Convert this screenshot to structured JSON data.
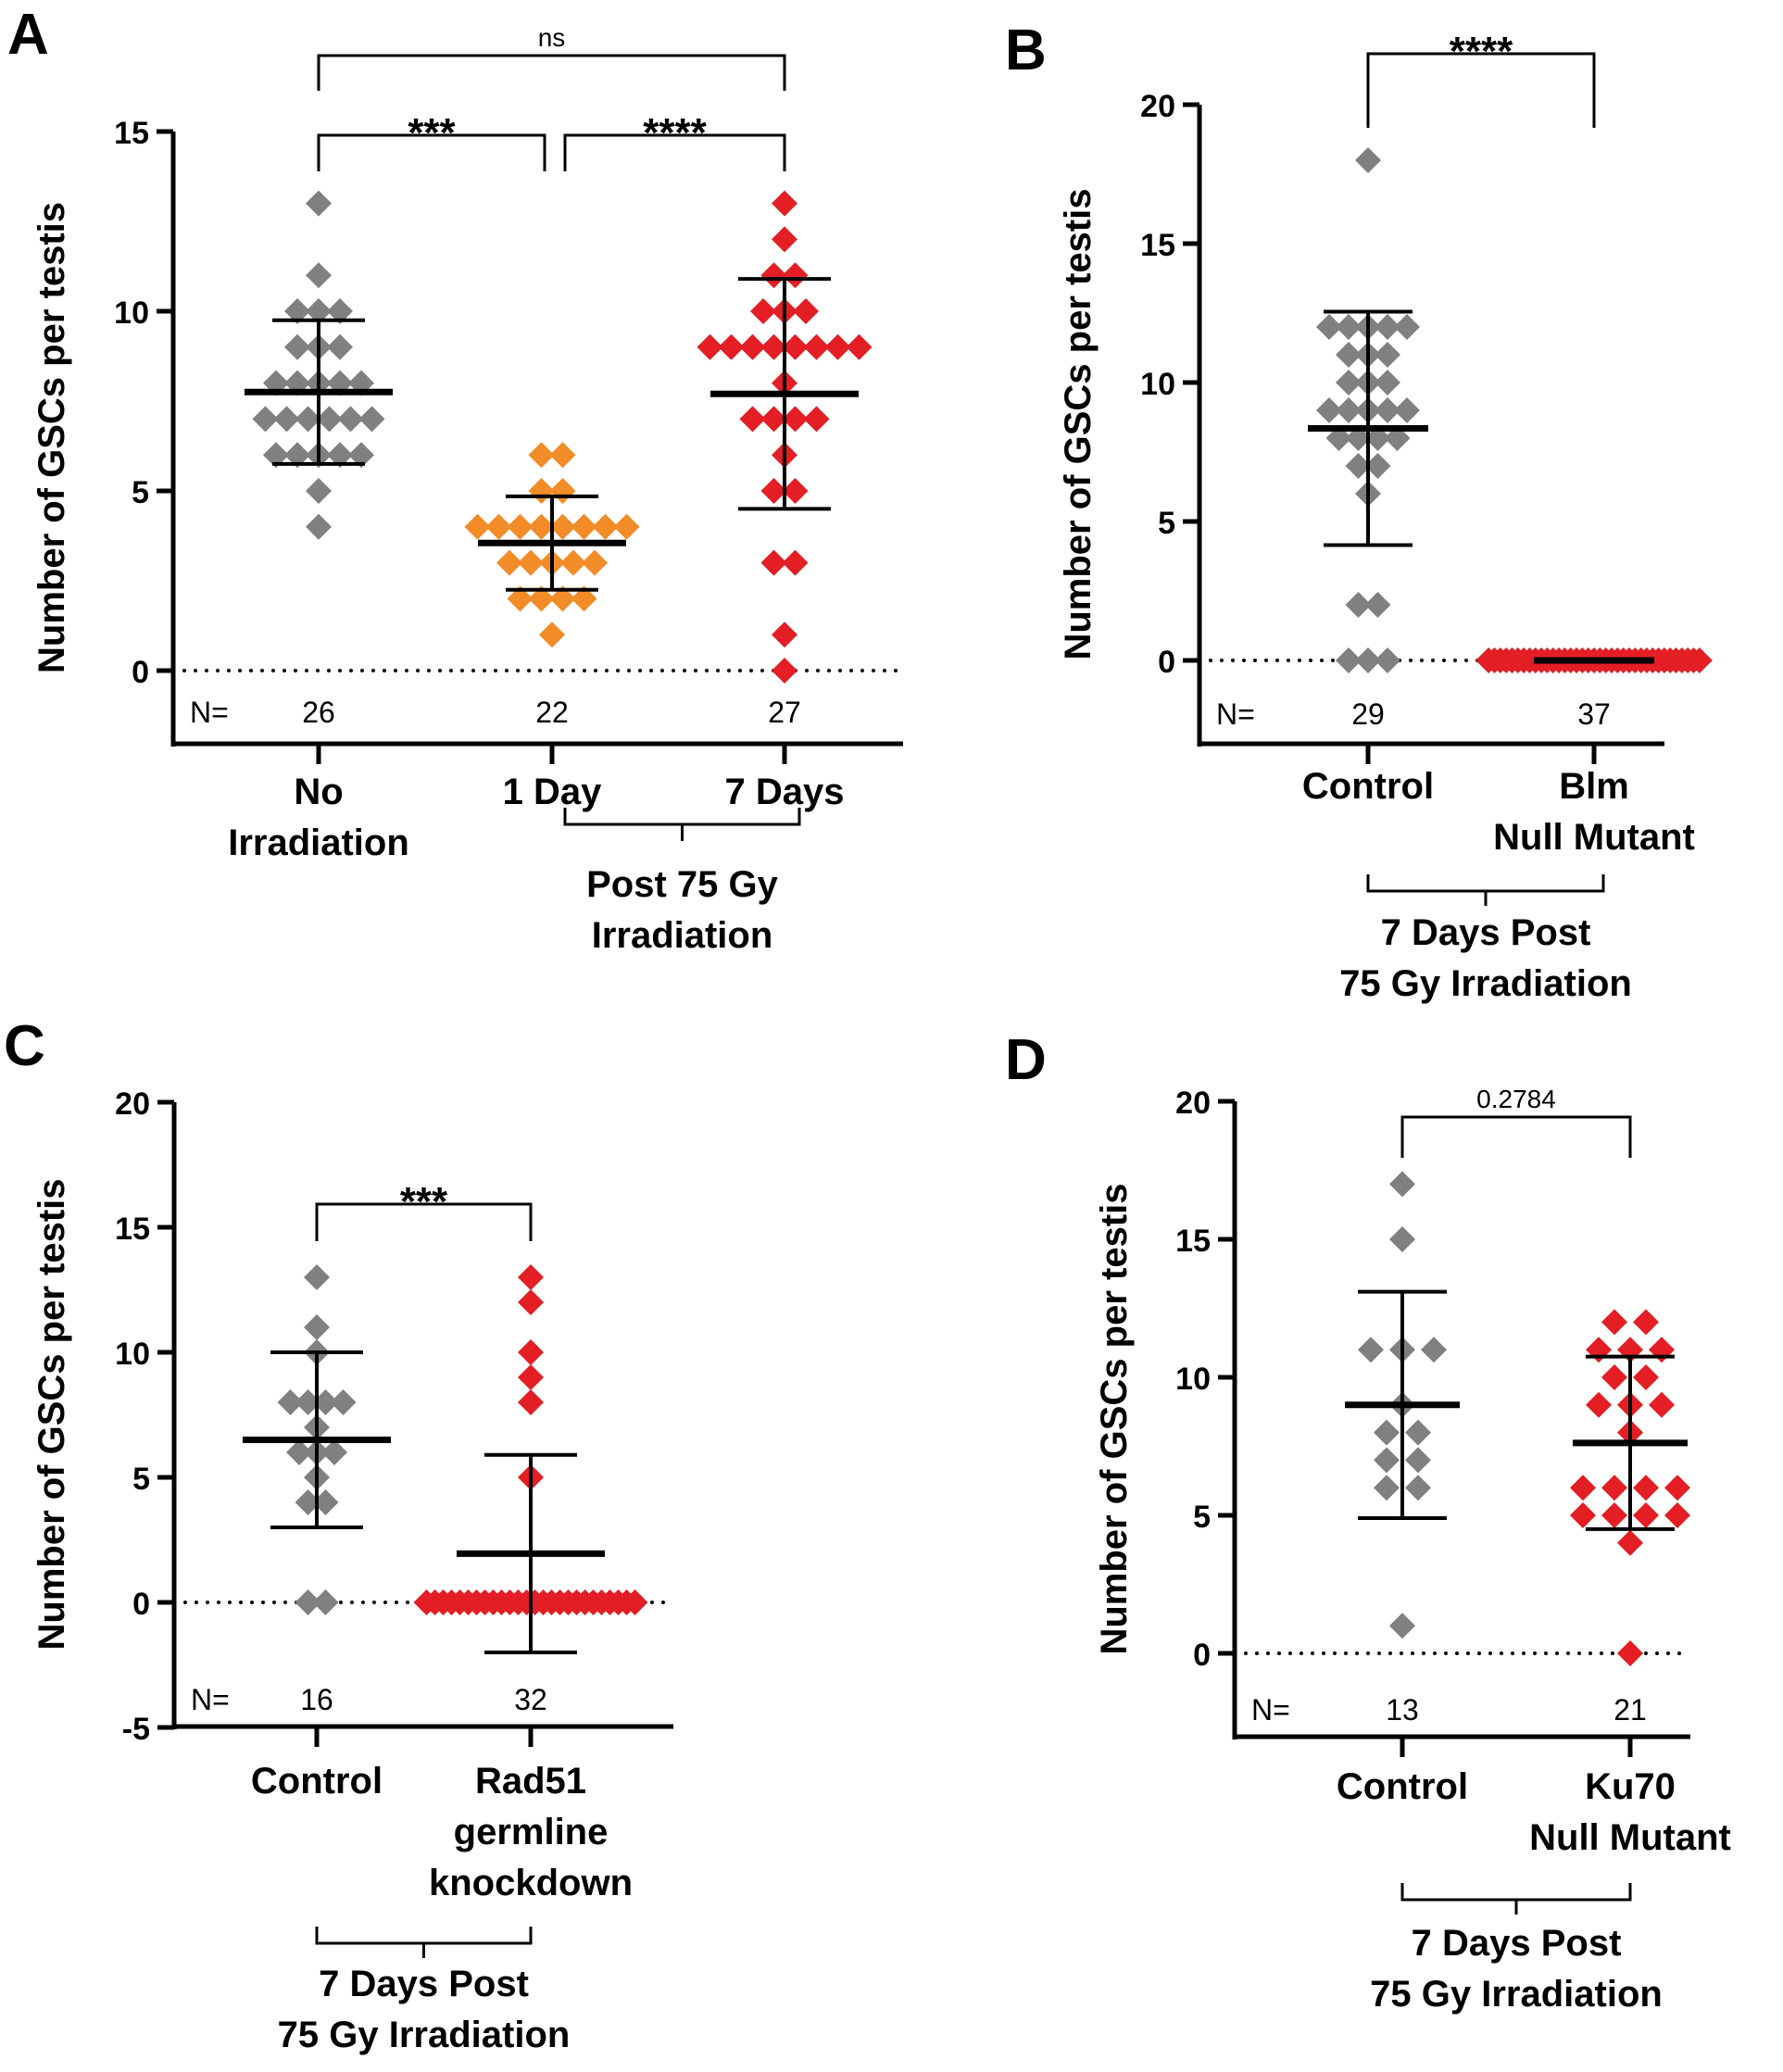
{
  "chart_data": [
    {
      "panel_label": "A",
      "type": "scatter",
      "subtype": "dot-plot with mean and SD",
      "ylabel": "Number of GSCs per testis",
      "ylim": [
        -2,
        15
      ],
      "yticks": [
        0,
        5,
        10,
        15
      ],
      "reference_line": 0,
      "n_label": "N=",
      "categories": [
        {
          "label_lines": [
            "No",
            "Irradiation"
          ],
          "n": "26",
          "color": "#808080",
          "values": [
            13,
            11,
            10,
            10,
            10,
            9,
            9,
            9,
            8,
            8,
            8,
            8,
            8,
            7,
            7,
            7,
            7,
            7,
            7,
            6,
            6,
            6,
            6,
            6,
            5,
            4
          ],
          "mean": 7.75,
          "sd_low": 5.75,
          "sd_high": 9.75
        },
        {
          "label_lines": [
            "1 Day"
          ],
          "n": "22",
          "color": "#f28c28",
          "values": [
            6,
            6,
            5,
            5,
            4,
            4,
            4,
            4,
            4,
            4,
            4,
            4,
            3,
            3,
            3,
            3,
            3,
            2,
            2,
            2,
            2,
            1
          ],
          "mean": 3.55,
          "sd_low": 2.25,
          "sd_high": 4.85
        },
        {
          "label_lines": [
            "7 Days"
          ],
          "n": "27",
          "color": "#e31e24",
          "values": [
            13,
            12,
            11,
            11,
            10,
            10,
            10,
            9,
            9,
            9,
            9,
            9,
            9,
            9,
            9,
            8,
            7,
            7,
            7,
            7,
            6,
            5,
            5,
            3,
            3,
            1,
            0
          ],
          "mean": 7.7,
          "sd_low": 4.5,
          "sd_high": 10.9
        }
      ],
      "group_bracket": {
        "from": 1,
        "to": 2,
        "label_lines": [
          "Post 75 Gy",
          "Irradiation"
        ]
      },
      "comparisons": [
        {
          "from": 0,
          "to": 1,
          "label": "***"
        },
        {
          "from": 1,
          "to": 2,
          "label": "****"
        },
        {
          "from": 0,
          "to": 2,
          "label": "ns"
        }
      ]
    },
    {
      "panel_label": "B",
      "type": "scatter",
      "subtype": "dot-plot with mean and SD",
      "ylabel": "Number of GSCs per testis",
      "ylim": [
        -3,
        20
      ],
      "yticks": [
        0,
        5,
        10,
        15,
        20
      ],
      "reference_line": 0,
      "n_label": "N=",
      "categories": [
        {
          "label_lines": [
            "Control"
          ],
          "n": "29",
          "color": "#808080",
          "values": [
            18,
            12,
            12,
            12,
            12,
            12,
            11,
            11,
            11,
            10,
            10,
            10,
            9,
            9,
            9,
            9,
            9,
            8,
            8,
            8,
            8,
            7,
            7,
            6,
            2,
            2,
            0,
            0,
            0
          ],
          "mean": 8.35,
          "sd_low": 4.15,
          "sd_high": 12.55
        },
        {
          "label_lines": [
            "Blm",
            "Null Mutant"
          ],
          "n": "37",
          "color": "#e31e24",
          "values": [
            0,
            0,
            0,
            0,
            0,
            0,
            0,
            0,
            0,
            0,
            0,
            0,
            0,
            0,
            0,
            0,
            0,
            0,
            0,
            0,
            0,
            0,
            0,
            0,
            0,
            0,
            0,
            0,
            0,
            0,
            0,
            0,
            0,
            0,
            0,
            0,
            0
          ],
          "mean": 0,
          "sd_low": 0,
          "sd_high": 0
        }
      ],
      "group_bracket": {
        "from": 0,
        "to": 1,
        "label_lines": [
          "7 Days Post",
          "75 Gy Irradiation"
        ]
      },
      "comparisons": [
        {
          "from": 0,
          "to": 1,
          "label": "****"
        }
      ]
    },
    {
      "panel_label": "C",
      "type": "scatter",
      "subtype": "dot-plot with mean and SD",
      "ylabel": "Number of GSCs per testis",
      "ylim": [
        -5,
        20
      ],
      "yticks": [
        -5,
        0,
        5,
        10,
        15,
        20
      ],
      "reference_line": 0,
      "n_label": "N=",
      "categories": [
        {
          "label_lines": [
            "Control"
          ],
          "n": "16",
          "color": "#808080",
          "values": [
            13,
            11,
            10,
            8,
            8,
            8,
            8,
            7,
            6,
            6,
            6,
            5,
            4,
            4,
            0,
            0
          ],
          "mean": 6.5,
          "sd_low": 3.0,
          "sd_high": 10.0
        },
        {
          "label_lines": [
            "Rad51",
            "germline",
            "knockdown"
          ],
          "n": "32",
          "color": "#e31e24",
          "values": [
            13,
            12,
            10,
            9,
            8,
            5,
            0,
            0,
            0,
            0,
            0,
            0,
            0,
            0,
            0,
            0,
            0,
            0,
            0,
            0,
            0,
            0,
            0,
            0,
            0,
            0,
            0,
            0,
            0,
            0,
            0,
            0
          ],
          "mean": 1.95,
          "sd_low": -2.0,
          "sd_high": 5.9
        }
      ],
      "group_bracket": {
        "from": 0,
        "to": 1,
        "label_lines": [
          "7 Days Post",
          "75 Gy Irradiation"
        ]
      },
      "comparisons": [
        {
          "from": 0,
          "to": 1,
          "label": "***"
        }
      ]
    },
    {
      "panel_label": "D",
      "type": "scatter",
      "subtype": "dot-plot with mean and SD",
      "ylabel": "Number of GSCs per testis",
      "ylim": [
        -3,
        20
      ],
      "yticks": [
        0,
        5,
        10,
        15,
        20
      ],
      "reference_line": 0,
      "n_label": "N=",
      "categories": [
        {
          "label_lines": [
            "Control"
          ],
          "n": "13",
          "color": "#808080",
          "values": [
            17,
            15,
            11,
            11,
            11,
            9,
            8,
            8,
            7,
            7,
            6,
            6,
            1
          ],
          "mean": 9.0,
          "sd_low": 4.9,
          "sd_high": 13.1
        },
        {
          "label_lines": [
            "Ku70",
            "Null Mutant"
          ],
          "n": "21",
          "color": "#e31e24",
          "values": [
            12,
            12,
            11,
            11,
            11,
            10,
            10,
            9,
            9,
            9,
            8,
            6,
            6,
            6,
            6,
            5,
            5,
            5,
            5,
            4,
            0
          ],
          "mean": 7.62,
          "sd_low": 4.5,
          "sd_high": 10.75
        }
      ],
      "group_bracket": {
        "from": 0,
        "to": 1,
        "label_lines": [
          "7 Days Post",
          "75 Gy Irradiation"
        ]
      },
      "comparisons": [
        {
          "from": 0,
          "to": 1,
          "label": "0.2784"
        }
      ]
    }
  ]
}
